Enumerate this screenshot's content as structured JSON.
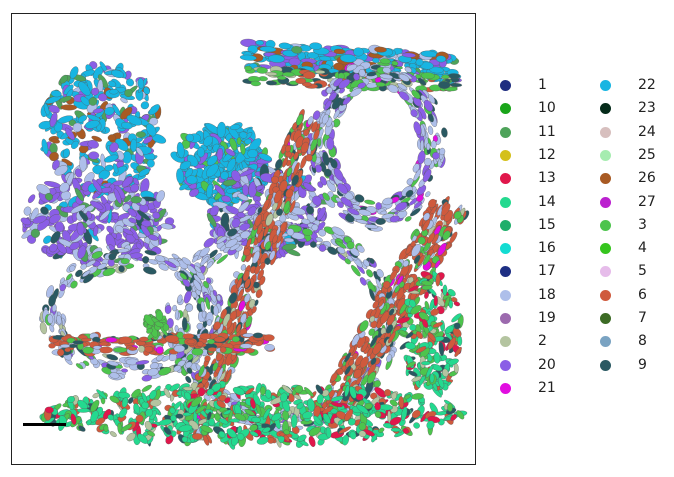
{
  "chart_data": {
    "type": "scatter",
    "title": "",
    "xlabel": "",
    "ylabel": "",
    "grid": false,
    "legend_placement": "right",
    "legend_columns": 2,
    "scale_bar": true,
    "series": [
      {
        "name": "1",
        "color": "#1f2d80"
      },
      {
        "name": "10",
        "color": "#1aa51a"
      },
      {
        "name": "11",
        "color": "#4ea35a"
      },
      {
        "name": "12",
        "color": "#d4c01b"
      },
      {
        "name": "13",
        "color": "#e0174b"
      },
      {
        "name": "14",
        "color": "#24d98f"
      },
      {
        "name": "15",
        "color": "#1fae6a"
      },
      {
        "name": "16",
        "color": "#13dcd2"
      },
      {
        "name": "17",
        "color": "#1e2f84"
      },
      {
        "name": "18",
        "color": "#aebfea"
      },
      {
        "name": "19",
        "color": "#9c6aae"
      },
      {
        "name": "2",
        "color": "#b4c4a0"
      },
      {
        "name": "20",
        "color": "#8a5ee6"
      },
      {
        "name": "21",
        "color": "#e10de0"
      },
      {
        "name": "22",
        "color": "#17b5e2"
      },
      {
        "name": "23",
        "color": "#052b1a"
      },
      {
        "name": "24",
        "color": "#d7bfbe"
      },
      {
        "name": "25",
        "color": "#a6ecb0"
      },
      {
        "name": "26",
        "color": "#a85a23"
      },
      {
        "name": "27",
        "color": "#bb21cf"
      },
      {
        "name": "3",
        "color": "#4dc44d"
      },
      {
        "name": "4",
        "color": "#36c51e"
      },
      {
        "name": "5",
        "color": "#e6bcea"
      },
      {
        "name": "6",
        "color": "#cf5a3d"
      },
      {
        "name": "7",
        "color": "#3c6b25"
      },
      {
        "name": "8",
        "color": "#7aa3c2"
      },
      {
        "name": "9",
        "color": "#2a5962"
      }
    ]
  }
}
